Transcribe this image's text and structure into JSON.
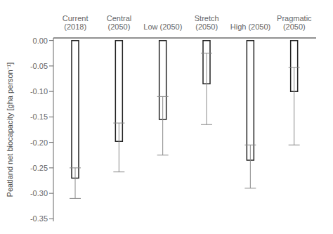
{
  "chart_data": {
    "type": "bar",
    "categories": [
      "Current\n(2018)",
      "Central\n(2050)",
      "Low (2050)",
      "Stretch\n(2050)",
      "High (2050)",
      "Pragmatic\n(2050)"
    ],
    "values": [
      -0.27,
      -0.198,
      -0.155,
      -0.085,
      -0.235,
      -0.1
    ],
    "err_lower": [
      -0.31,
      -0.258,
      -0.225,
      -0.165,
      -0.29,
      -0.205
    ],
    "err_upper": [
      -0.25,
      -0.162,
      -0.11,
      -0.025,
      -0.205,
      -0.053
    ],
    "color": "white",
    "ylabel": "Peatland net biocapacity [gha person⁻¹]",
    "ylim": [
      -0.355,
      0.005
    ],
    "yticks": [
      {
        "value": 0.0,
        "label": "0.00"
      },
      -0.05,
      {
        "value": -0.1,
        "label": "-0.10"
      },
      -0.15,
      {
        "value": -0.2,
        "label": "-0.20"
      },
      -0.25,
      {
        "value": -0.3,
        "label": "-0.30"
      },
      -0.35
    ],
    "grid": false
  }
}
